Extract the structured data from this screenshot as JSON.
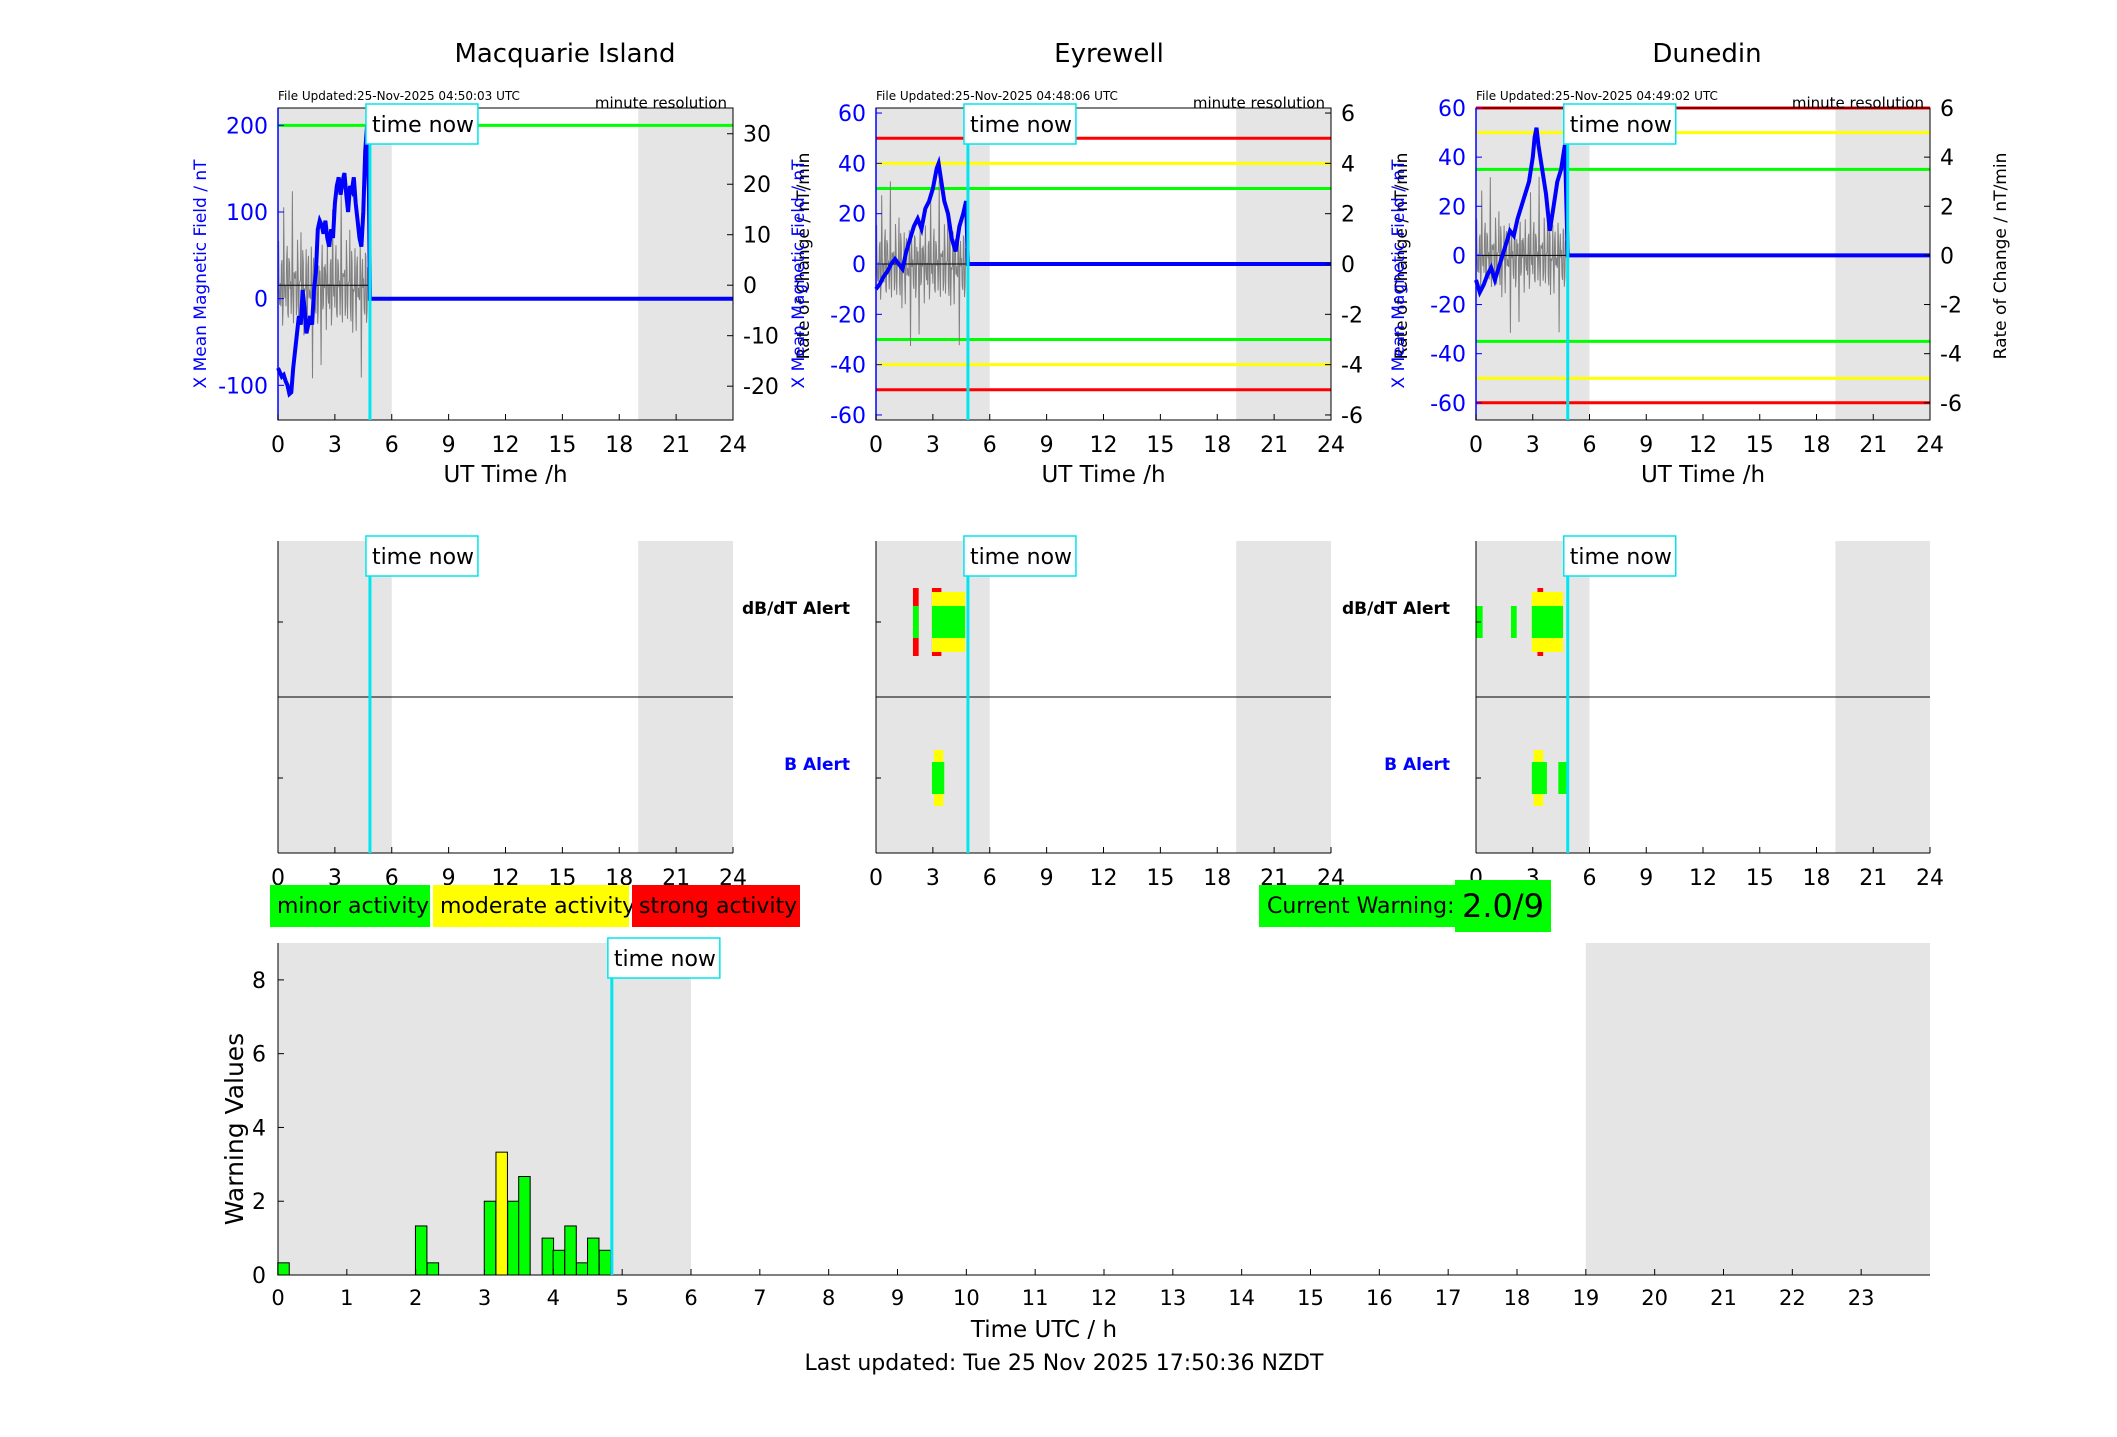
{
  "figure": {
    "last_updated": "Last updated: Tue 25 Nov 2025 17:50:36 NZDT",
    "time_now_label": "time now",
    "colors": {
      "trace": "#0000ff",
      "rate": "#808080",
      "shade": "#e5e5e5",
      "now_line": "#00e5ee",
      "green": "#00ff00",
      "yellow": "#ffff00",
      "red": "#ff0000"
    }
  },
  "legend": [
    {
      "label": "minor activity",
      "color": "#00ff00"
    },
    {
      "label": "moderate activity",
      "color": "#ffff00"
    },
    {
      "label": "strong activity",
      "color": "#ff0000"
    }
  ],
  "current_warning": {
    "label": "Current Warning:",
    "value": "2.0/9",
    "color": "#00ff00"
  },
  "chart_data": [
    {
      "type": "line",
      "station": "Macquarie Island",
      "file_updated": "File Updated:25-Nov-2025 04:50:03 UTC",
      "resolution": "minute resolution",
      "xlabel": "UT Time /h",
      "ylabel_left": "X Mean Magnetic Field / nT",
      "ylabel_right": "Rate of Change / nT/min",
      "xlim": [
        0,
        24
      ],
      "xticks": [
        0,
        3,
        6,
        9,
        12,
        15,
        18,
        21,
        24
      ],
      "ylim": [
        -140,
        220
      ],
      "yticks": [
        -100,
        0,
        100,
        200
      ],
      "ylim_right": [
        -26.7,
        35.1
      ],
      "yticks_right": [
        -20,
        -10,
        0,
        10,
        20,
        30
      ],
      "night_shading": [
        [
          0,
          6
        ],
        [
          19,
          24
        ]
      ],
      "time_now": 4.85,
      "thresholds": [
        {
          "value": 200,
          "color": "#00ff00"
        }
      ],
      "series": [
        {
          "x": [
            0,
            0.1,
            0.2,
            0.3,
            0.4,
            0.5,
            0.6,
            0.7,
            0.8,
            0.9,
            1.0,
            1.1,
            1.2,
            1.3,
            1.4,
            1.5,
            1.6,
            1.7,
            1.8,
            1.9,
            2.0,
            2.1,
            2.2,
            2.3,
            2.4,
            2.5,
            2.6,
            2.7,
            2.8,
            2.9,
            3.0,
            3.1,
            3.2,
            3.3,
            3.4,
            3.5,
            3.6,
            3.7,
            3.8,
            3.9,
            4.0,
            4.1,
            4.2,
            4.3,
            4.4,
            4.5,
            4.6,
            4.7,
            4.8,
            4.85,
            24
          ],
          "y": [
            -80,
            -85,
            -90,
            -88,
            -95,
            -100,
            -110,
            -108,
            -80,
            -60,
            -40,
            -20,
            -30,
            10,
            -10,
            -40,
            -30,
            -20,
            -30,
            10,
            30,
            80,
            90,
            85,
            75,
            90,
            70,
            60,
            80,
            70,
            110,
            130,
            140,
            120,
            135,
            145,
            120,
            100,
            130,
            125,
            140,
            110,
            90,
            70,
            60,
            100,
            170,
            200,
            120,
            0,
            0
          ]
        }
      ]
    },
    {
      "type": "line",
      "station": "Eyrewell",
      "file_updated": "File Updated:25-Nov-2025 04:48:06 UTC",
      "resolution": "minute resolution",
      "xlabel": "UT Time /h",
      "ylabel_left": "X Mean Magnetic Field / nT",
      "ylabel_right": "Rate of Change / nT/min",
      "xlim": [
        0,
        24
      ],
      "xticks": [
        0,
        3,
        6,
        9,
        12,
        15,
        18,
        21,
        24
      ],
      "ylim": [
        -62,
        62
      ],
      "yticks": [
        -60,
        -40,
        -20,
        0,
        20,
        40,
        60
      ],
      "ylim_right": [
        -6.2,
        6.2
      ],
      "yticks_right": [
        -6,
        -4,
        -2,
        0,
        2,
        4,
        6
      ],
      "night_shading": [
        [
          0,
          6
        ],
        [
          19,
          24
        ]
      ],
      "time_now": 4.85,
      "thresholds": [
        {
          "value": 50,
          "color": "#ff0000"
        },
        {
          "value": 40,
          "color": "#ffff00"
        },
        {
          "value": 30,
          "color": "#00ff00"
        },
        {
          "value": -30,
          "color": "#00ff00"
        },
        {
          "value": -40,
          "color": "#ffff00"
        },
        {
          "value": -50,
          "color": "#ff0000"
        }
      ],
      "series": [
        {
          "x": [
            0,
            0.2,
            0.4,
            0.6,
            0.8,
            1.0,
            1.2,
            1.4,
            1.6,
            1.8,
            2.0,
            2.2,
            2.4,
            2.6,
            2.8,
            3.0,
            3.2,
            3.3,
            3.4,
            3.6,
            3.8,
            4.0,
            4.2,
            4.4,
            4.6,
            4.75,
            4.85,
            24
          ],
          "y": [
            -10,
            -8,
            -5,
            -3,
            0,
            2,
            0,
            -2,
            5,
            10,
            15,
            18,
            14,
            22,
            25,
            30,
            38,
            40,
            35,
            25,
            20,
            10,
            5,
            15,
            20,
            25,
            0,
            0
          ]
        }
      ]
    },
    {
      "type": "line",
      "station": "Dunedin",
      "file_updated": "File Updated:25-Nov-2025 04:49:02 UTC",
      "resolution": "minute resolution",
      "xlabel": "UT Time /h",
      "ylabel_left": "X Mean Magnetic Field / nT",
      "ylabel_right": "Rate of Change / nT/min",
      "xlim": [
        0,
        24
      ],
      "xticks": [
        0,
        3,
        6,
        9,
        12,
        15,
        18,
        21,
        24
      ],
      "ylim": [
        -67,
        60
      ],
      "yticks": [
        -60,
        -40,
        -20,
        0,
        20,
        40,
        60
      ],
      "ylim_right": [
        -6.7,
        6.0
      ],
      "yticks_right": [
        -6,
        -4,
        -2,
        0,
        2,
        4,
        6
      ],
      "night_shading": [
        [
          0,
          6
        ],
        [
          19,
          24
        ]
      ],
      "time_now": 4.85,
      "thresholds": [
        {
          "value": 60,
          "color": "#ff0000"
        },
        {
          "value": 50,
          "color": "#ffff00"
        },
        {
          "value": 35,
          "color": "#00ff00"
        },
        {
          "value": -35,
          "color": "#00ff00"
        },
        {
          "value": -50,
          "color": "#ffff00"
        },
        {
          "value": -60,
          "color": "#ff0000"
        }
      ],
      "series": [
        {
          "x": [
            0,
            0.2,
            0.4,
            0.6,
            0.8,
            1.0,
            1.2,
            1.4,
            1.6,
            1.8,
            2.0,
            2.2,
            2.4,
            2.6,
            2.8,
            3.0,
            3.1,
            3.2,
            3.3,
            3.5,
            3.7,
            3.9,
            4.1,
            4.3,
            4.5,
            4.6,
            4.7,
            4.85,
            24
          ],
          "y": [
            -10,
            -15,
            -12,
            -8,
            -5,
            -10,
            -5,
            0,
            5,
            10,
            8,
            15,
            20,
            25,
            30,
            40,
            48,
            52,
            45,
            35,
            25,
            10,
            20,
            30,
            35,
            40,
            45,
            0,
            0
          ]
        }
      ]
    },
    {
      "type": "bar",
      "title": "Warning Values",
      "xlabel": "Time UTC / h",
      "ylabel": "Warning Values",
      "xlim": [
        0,
        24
      ],
      "xticks": [
        0,
        1,
        2,
        3,
        4,
        5,
        6,
        7,
        8,
        9,
        10,
        11,
        12,
        13,
        14,
        15,
        16,
        17,
        18,
        19,
        20,
        21,
        22,
        23
      ],
      "ylim": [
        0,
        9
      ],
      "yticks": [
        0,
        2,
        4,
        6,
        8
      ],
      "night_shading": [
        [
          0,
          6
        ],
        [
          19,
          24
        ]
      ],
      "time_now": 4.85,
      "bin_width": 0.1667,
      "x": [
        0.08,
        2.08,
        2.25,
        3.08,
        3.25,
        3.42,
        3.58,
        3.92,
        4.08,
        4.25,
        4.42,
        4.58,
        4.75
      ],
      "values": [
        0.33,
        1.33,
        0.33,
        2.0,
        3.33,
        2.0,
        2.67,
        1.0,
        0.67,
        1.33,
        0.33,
        1.0,
        0.67
      ],
      "colors": [
        "#00ff00",
        "#00ff00",
        "#00ff00",
        "#00ff00",
        "#ffff00",
        "#00ff00",
        "#00ff00",
        "#00ff00",
        "#00ff00",
        "#00ff00",
        "#00ff00",
        "#00ff00",
        "#00ff00"
      ]
    }
  ],
  "alerts": {
    "xlim": [
      0,
      24
    ],
    "xticks": [
      0,
      3,
      6,
      9,
      12,
      15,
      18,
      21,
      24
    ],
    "dbdt_label": "dB/dT Alert",
    "b_label": "B Alert",
    "night_shading": [
      [
        0,
        6
      ],
      [
        19,
        24
      ]
    ],
    "time_now": 4.85,
    "panels": [
      {
        "station": "Macquarie Island",
        "show_labels": false,
        "dbdt": [],
        "b": []
      },
      {
        "station": "Eyrewell",
        "show_labels": true,
        "dbdt": [
          {
            "start": 1.95,
            "end": 2.25,
            "level": "strong"
          },
          {
            "start": 2.95,
            "end": 3.45,
            "level": "strong"
          },
          {
            "start": 2.95,
            "end": 4.7,
            "level": "moderate"
          },
          {
            "start": 2.95,
            "end": 4.7,
            "level": "minor"
          },
          {
            "start": 1.95,
            "end": 2.25,
            "level": "minor"
          }
        ],
        "b": [
          {
            "start": 3.05,
            "end": 3.55,
            "level": "moderate"
          },
          {
            "start": 2.95,
            "end": 3.6,
            "level": "minor"
          }
        ]
      },
      {
        "station": "Dunedin",
        "show_labels": true,
        "dbdt": [
          {
            "start": 3.25,
            "end": 3.55,
            "level": "strong"
          },
          {
            "start": 2.95,
            "end": 4.6,
            "level": "moderate"
          },
          {
            "start": 0.0,
            "end": 0.35,
            "level": "minor"
          },
          {
            "start": 1.85,
            "end": 2.15,
            "level": "minor"
          },
          {
            "start": 2.95,
            "end": 4.6,
            "level": "minor"
          }
        ],
        "b": [
          {
            "start": 3.05,
            "end": 3.55,
            "level": "moderate"
          },
          {
            "start": 2.95,
            "end": 3.75,
            "level": "minor"
          },
          {
            "start": 4.35,
            "end": 4.9,
            "level": "minor"
          }
        ]
      }
    ]
  }
}
